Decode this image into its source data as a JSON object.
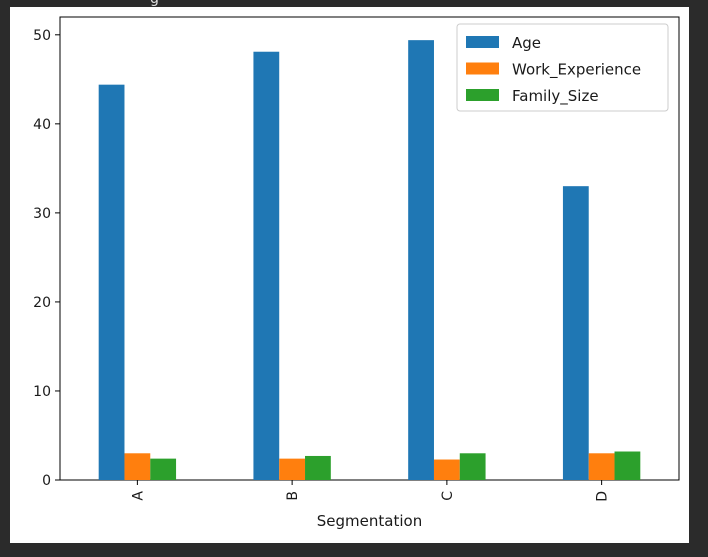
{
  "chart_data": {
    "type": "bar",
    "categories": [
      "A",
      "B",
      "C",
      "D"
    ],
    "series": [
      {
        "name": "Age",
        "values": [
          44.4,
          48.1,
          49.4,
          33.0
        ],
        "color": "#1f77b4"
      },
      {
        "name": "Work_Experience",
        "values": [
          3.0,
          2.4,
          2.3,
          3.0
        ],
        "color": "#ff7f0e"
      },
      {
        "name": "Family_Size",
        "values": [
          2.4,
          2.7,
          3.0,
          3.2
        ],
        "color": "#2ca02c"
      }
    ],
    "xlabel": "Segmentation",
    "ylabel": "",
    "ylim": [
      0,
      52
    ],
    "yticks": [
      0,
      10,
      20,
      30,
      40,
      50
    ],
    "grid": false,
    "legend_position": "top-right"
  },
  "clipped_title_fragment": "g"
}
